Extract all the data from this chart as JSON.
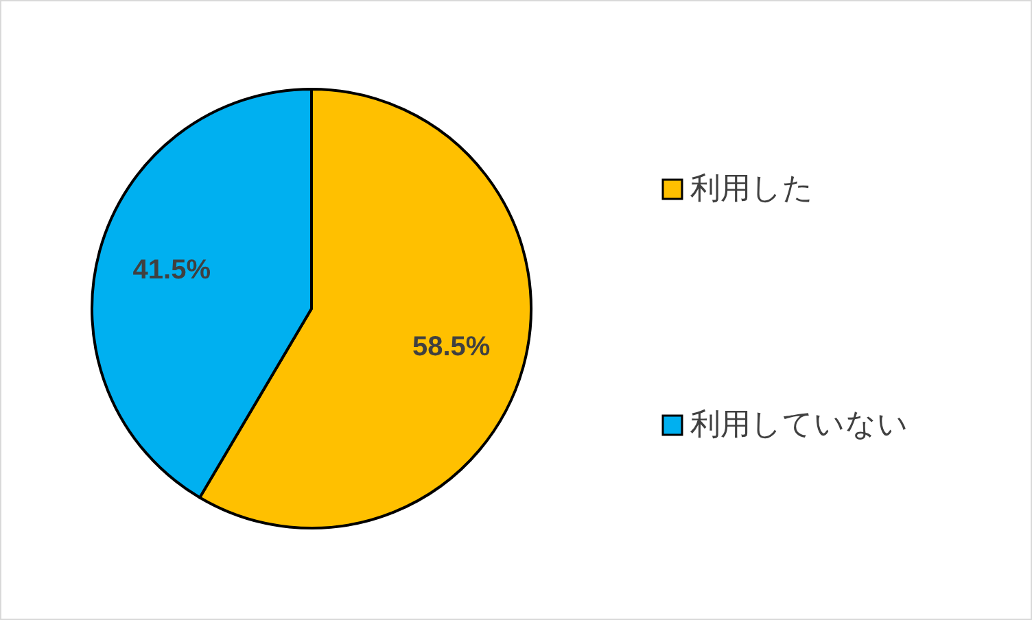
{
  "chart_data": {
    "type": "pie",
    "categories": [
      "利用した",
      "利用していない"
    ],
    "values": [
      58.5,
      41.5
    ],
    "colors": [
      "#ffc000",
      "#00b0f0"
    ],
    "value_labels": [
      "58.5%",
      "41.5%"
    ],
    "legend": "right"
  }
}
